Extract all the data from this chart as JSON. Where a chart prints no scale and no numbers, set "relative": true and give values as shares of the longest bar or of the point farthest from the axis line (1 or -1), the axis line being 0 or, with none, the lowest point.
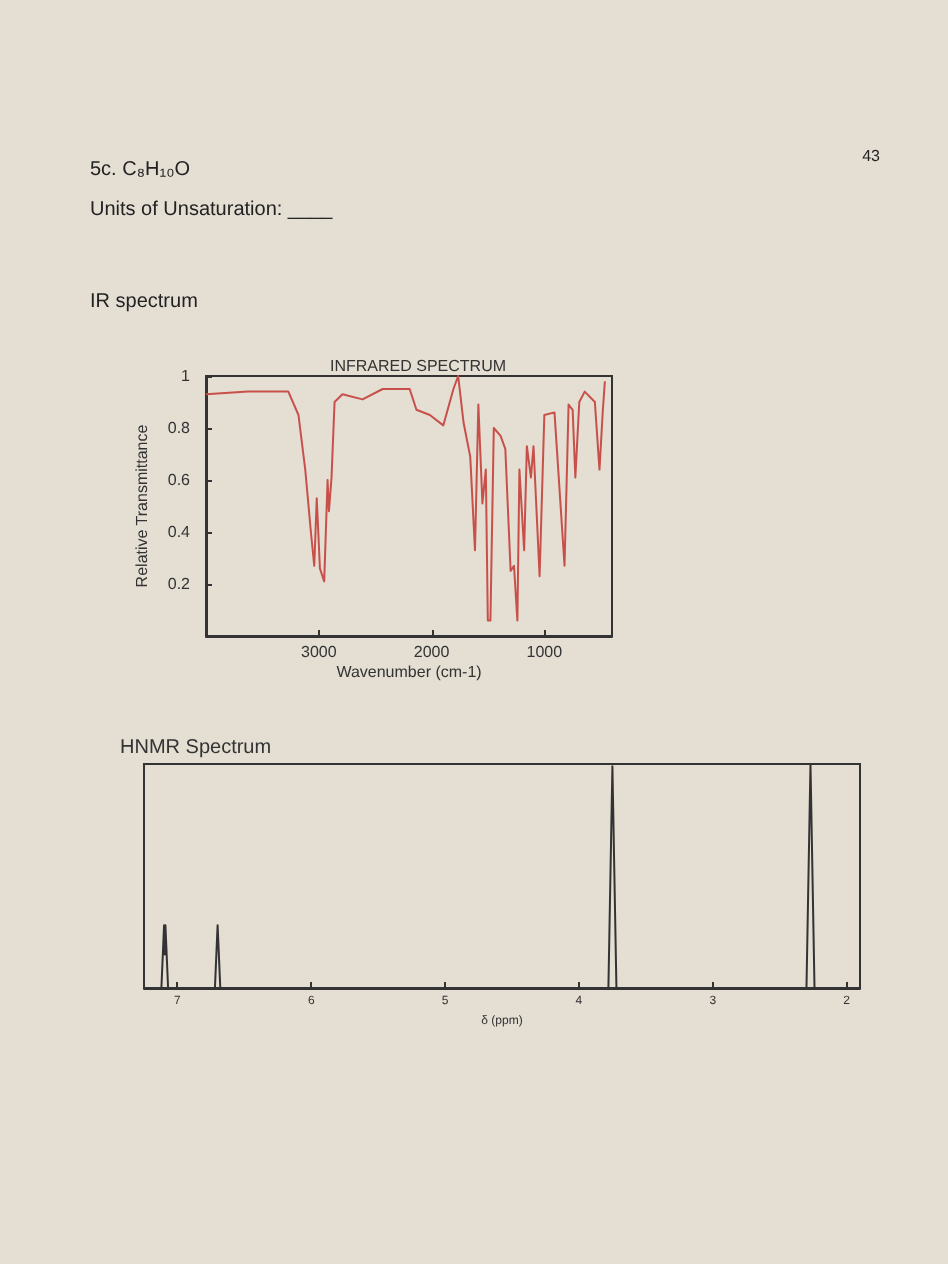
{
  "chart_data": [
    {
      "type": "line",
      "title": "INFRARED SPECTRUM",
      "xlabel": "Wavenumber (cm-1)",
      "ylabel": "Relative Transmittance",
      "annotations": [
        "43",
        "5c. C₈H₁₀O",
        "Units of Unsaturation: ____",
        "IR spectrum"
      ],
      "xlim": [
        4000,
        400
      ],
      "xticks": [
        3000,
        2000,
        1000
      ],
      "ylim": [
        0,
        1
      ],
      "yticks": [
        0.2,
        0.4,
        0.6,
        0.8,
        1
      ],
      "marker": "none",
      "x": [
        4000,
        3627,
        3270,
        3180,
        3120,
        3070,
        3040,
        3018,
        2990,
        2952,
        2922,
        2910,
        2887,
        2860,
        2790,
        2612,
        2433,
        2194,
        2134,
        2015,
        1896,
        1806,
        1764,
        1716,
        1657,
        1615,
        1585,
        1549,
        1519,
        1501,
        1478,
        1448,
        1388,
        1346,
        1299,
        1269,
        1239,
        1221,
        1179,
        1155,
        1119,
        1096,
        1042,
        1000,
        910,
        821,
        785,
        749,
        725,
        690,
        642,
        552,
        511,
        481,
        463
      ],
      "series": [
        {
          "color": "#c8504a",
          "values": [
            0.93,
            0.94,
            0.94,
            0.85,
            0.64,
            0.4,
            0.27,
            0.53,
            0.26,
            0.21,
            0.6,
            0.48,
            0.61,
            0.9,
            0.93,
            0.91,
            0.95,
            0.95,
            0.87,
            0.85,
            0.81,
            0.95,
            1.0,
            0.82,
            0.69,
            0.33,
            0.89,
            0.51,
            0.64,
            0.06,
            0.06,
            0.8,
            0.77,
            0.72,
            0.25,
            0.27,
            0.06,
            0.64,
            0.33,
            0.73,
            0.61,
            0.73,
            0.23,
            0.85,
            0.86,
            0.27,
            0.89,
            0.87,
            0.61,
            0.9,
            0.94,
            0.9,
            0.64,
            0.87,
            0.98
          ]
        }
      ]
    },
    {
      "type": "line",
      "title": "HNMR Spectrum",
      "xlabel": "δ (ppm)",
      "relative": true,
      "xlim": [
        7.25,
        1.9
      ],
      "xticks": [
        7,
        6,
        5,
        4,
        3,
        2
      ],
      "marker": "none",
      "x": [
        7.25,
        7.12,
        7.1,
        7.095,
        7.09,
        7.07,
        6.72,
        6.7,
        6.68,
        3.78,
        3.75,
        3.72,
        2.3,
        2.27,
        2.24,
        1.9
      ],
      "series": [
        {
          "color": "#333333",
          "values": [
            0,
            0,
            0.28,
            0.15,
            0.28,
            0,
            0,
            0.28,
            0,
            0,
            0.99,
            0,
            0,
            1,
            0,
            0
          ]
        }
      ]
    }
  ]
}
